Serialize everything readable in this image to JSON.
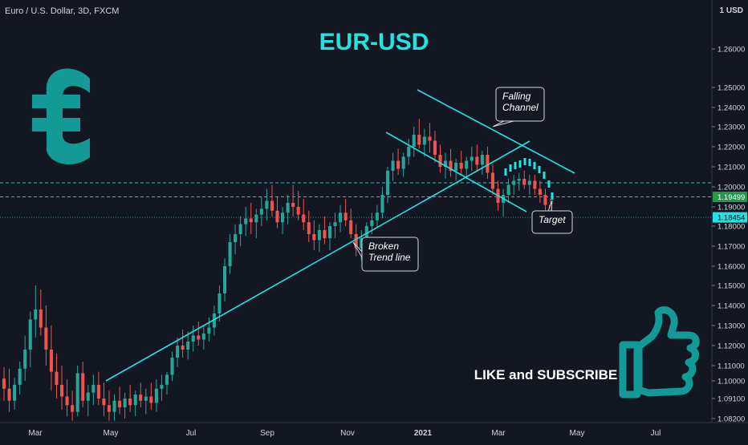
{
  "header": {
    "symbol": "Euro / U.S. Dollar, 3D, FXCM",
    "currency": "1 USD"
  },
  "colors": {
    "background": "#131722",
    "axis_text": "#d1d4dc",
    "bull": "#26a69a",
    "bear": "#ef5350",
    "line_cyan": "#20e3e3",
    "accent_teal": "#139a96",
    "price_marker": "#1e9a4a",
    "last_price_marker": "#20e3e3"
  },
  "icons": [
    "euro-sign-icon",
    "thumbs-up-icon"
  ],
  "chart_data": {
    "type": "candlestick",
    "title": "EUR-USD",
    "x_ticks": [
      "Mar",
      "May",
      "Jul",
      "Sep",
      "Nov",
      "2021",
      "Mar",
      "May",
      "Jul"
    ],
    "y_ticks": [
      "1.26000",
      "1.25000",
      "1.24000",
      "1.23000",
      "1.22000",
      "1.21000",
      "1.20000",
      "1.19000",
      "1.18000",
      "1.17000",
      "1.16000",
      "1.15000",
      "1.14000",
      "1.13000",
      "1.12000",
      "1.11000",
      "1.10000",
      "1.09100",
      "1.08200"
    ],
    "y_range": [
      1.0805,
      1.2725
    ],
    "series": [
      {
        "values": [
          [
            1.1015,
            1.109,
            1.09,
            1.096
          ],
          [
            1.096,
            1.108,
            1.085,
            1.09
          ],
          [
            1.09,
            1.102,
            1.086,
            1.098
          ],
          [
            1.098,
            1.112,
            1.093,
            1.108
          ],
          [
            1.108,
            1.125,
            1.1,
            1.118
          ],
          [
            1.118,
            1.137,
            1.109,
            1.133
          ],
          [
            1.133,
            1.15,
            1.124,
            1.138
          ],
          [
            1.138,
            1.148,
            1.125,
            1.129
          ],
          [
            1.129,
            1.14,
            1.11,
            1.118
          ],
          [
            1.118,
            1.13,
            1.095,
            1.106
          ],
          [
            1.106,
            1.116,
            1.091,
            1.098
          ],
          [
            1.098,
            1.11,
            1.086,
            1.092
          ],
          [
            1.092,
            1.101,
            1.083,
            1.088
          ],
          [
            1.088,
            1.095,
            1.081,
            1.085
          ],
          [
            1.085,
            1.11,
            1.083,
            1.105
          ],
          [
            1.105,
            1.112,
            1.087,
            1.09
          ],
          [
            1.09,
            1.098,
            1.083,
            1.094
          ],
          [
            1.094,
            1.104,
            1.088,
            1.098
          ],
          [
            1.098,
            1.106,
            1.088,
            1.091
          ],
          [
            1.091,
            1.099,
            1.083,
            1.088
          ],
          [
            1.088,
            1.095,
            1.081,
            1.085
          ],
          [
            1.085,
            1.093,
            1.081,
            1.09
          ],
          [
            1.09,
            1.097,
            1.084,
            1.087
          ],
          [
            1.087,
            1.094,
            1.082,
            1.091
          ],
          [
            1.091,
            1.098,
            1.085,
            1.088
          ],
          [
            1.088,
            1.095,
            1.083,
            1.093
          ],
          [
            1.093,
            1.099,
            1.087,
            1.09
          ],
          [
            1.09,
            1.096,
            1.084,
            1.092
          ],
          [
            1.092,
            1.099,
            1.086,
            1.089
          ],
          [
            1.089,
            1.101,
            1.085,
            1.096
          ],
          [
            1.096,
            1.104,
            1.09,
            1.098
          ],
          [
            1.098,
            1.106,
            1.093,
            1.104
          ],
          [
            1.104,
            1.117,
            1.1,
            1.114
          ],
          [
            1.114,
            1.124,
            1.109,
            1.12
          ],
          [
            1.12,
            1.128,
            1.114,
            1.118
          ],
          [
            1.118,
            1.127,
            1.113,
            1.122
          ],
          [
            1.122,
            1.13,
            1.117,
            1.125
          ],
          [
            1.125,
            1.132,
            1.12,
            1.123
          ],
          [
            1.123,
            1.13,
            1.118,
            1.126
          ],
          [
            1.126,
            1.134,
            1.122,
            1.129
          ],
          [
            1.129,
            1.14,
            1.125,
            1.136
          ],
          [
            1.136,
            1.15,
            1.132,
            1.146
          ],
          [
            1.146,
            1.164,
            1.142,
            1.16
          ],
          [
            1.16,
            1.176,
            1.156,
            1.172
          ],
          [
            1.172,
            1.181,
            1.166,
            1.176
          ],
          [
            1.176,
            1.185,
            1.17,
            1.181
          ],
          [
            1.181,
            1.19,
            1.175,
            1.184
          ],
          [
            1.184,
            1.192,
            1.176,
            1.182
          ],
          [
            1.182,
            1.189,
            1.174,
            1.186
          ],
          [
            1.186,
            1.195,
            1.18,
            1.189
          ],
          [
            1.189,
            1.199,
            1.183,
            1.193
          ],
          [
            1.193,
            1.201,
            1.185,
            1.188
          ],
          [
            1.188,
            1.195,
            1.179,
            1.182
          ],
          [
            1.182,
            1.19,
            1.176,
            1.187
          ],
          [
            1.187,
            1.196,
            1.181,
            1.192
          ],
          [
            1.192,
            1.201,
            1.185,
            1.19
          ],
          [
            1.19,
            1.198,
            1.183,
            1.186
          ],
          [
            1.186,
            1.194,
            1.178,
            1.182
          ],
          [
            1.182,
            1.188,
            1.172,
            1.176
          ],
          [
            1.176,
            1.183,
            1.168,
            1.173
          ],
          [
            1.173,
            1.181,
            1.167,
            1.178
          ],
          [
            1.178,
            1.185,
            1.171,
            1.174
          ],
          [
            1.174,
            1.182,
            1.168,
            1.18
          ],
          [
            1.18,
            1.187,
            1.174,
            1.182
          ],
          [
            1.182,
            1.191,
            1.177,
            1.187
          ],
          [
            1.187,
            1.194,
            1.18,
            1.183
          ],
          [
            1.183,
            1.189,
            1.174,
            1.176
          ],
          [
            1.176,
            1.181,
            1.165,
            1.169
          ],
          [
            1.169,
            1.178,
            1.163,
            1.174
          ],
          [
            1.174,
            1.182,
            1.169,
            1.18
          ],
          [
            1.18,
            1.187,
            1.176,
            1.183
          ],
          [
            1.183,
            1.191,
            1.179,
            1.187
          ],
          [
            1.187,
            1.2,
            1.184,
            1.196
          ],
          [
            1.196,
            1.21,
            1.192,
            1.208
          ],
          [
            1.208,
            1.217,
            1.203,
            1.213
          ],
          [
            1.213,
            1.219,
            1.206,
            1.209
          ],
          [
            1.209,
            1.217,
            1.205,
            1.215
          ],
          [
            1.215,
            1.224,
            1.211,
            1.22
          ],
          [
            1.22,
            1.23,
            1.215,
            1.226
          ],
          [
            1.226,
            1.234,
            1.219,
            1.221
          ],
          [
            1.221,
            1.229,
            1.215,
            1.225
          ],
          [
            1.225,
            1.232,
            1.217,
            1.223
          ],
          [
            1.223,
            1.228,
            1.212,
            1.216
          ],
          [
            1.216,
            1.221,
            1.207,
            1.21
          ],
          [
            1.21,
            1.217,
            1.204,
            1.213
          ],
          [
            1.213,
            1.219,
            1.205,
            1.208
          ],
          [
            1.208,
            1.214,
            1.203,
            1.212
          ],
          [
            1.212,
            1.218,
            1.206,
            1.209
          ],
          [
            1.209,
            1.215,
            1.204,
            1.213
          ],
          [
            1.213,
            1.22,
            1.208,
            1.215
          ],
          [
            1.215,
            1.221,
            1.208,
            1.211
          ],
          [
            1.211,
            1.218,
            1.206,
            1.216
          ],
          [
            1.216,
            1.22,
            1.204,
            1.207
          ],
          [
            1.207,
            1.211,
            1.196,
            1.199
          ],
          [
            1.199,
            1.203,
            1.188,
            1.192
          ],
          [
            1.192,
            1.199,
            1.185,
            1.196
          ],
          [
            1.196,
            1.204,
            1.192,
            1.201
          ],
          [
            1.201,
            1.206,
            1.196,
            1.203
          ],
          [
            1.203,
            1.207,
            1.198,
            1.204
          ],
          [
            1.204,
            1.208,
            1.199,
            1.201
          ],
          [
            1.201,
            1.206,
            1.196,
            1.203
          ],
          [
            1.203,
            1.206,
            1.196,
            1.199
          ],
          [
            1.199,
            1.203,
            1.192,
            1.196
          ],
          [
            1.196,
            1.199,
            1.188,
            1.191
          ],
          [
            1.191,
            1.194,
            1.184,
            1.1845
          ]
        ]
      }
    ],
    "horizontal_levels": [
      {
        "value": 1.202,
        "style": "dashed"
      },
      {
        "value": 1.19499,
        "style": "dashed"
      },
      {
        "value": 1.18454,
        "style": "dotted"
      }
    ],
    "price_labels": [
      "1.19499",
      "1.18454"
    ],
    "annotations": [
      {
        "text": [
          "Falling",
          "Channel"
        ]
      },
      {
        "text": [
          "Broken",
          "Trend line"
        ]
      },
      {
        "text": [
          "Target"
        ]
      }
    ],
    "side_text": "LIKE and SUBSCRIBE",
    "grid": false
  }
}
